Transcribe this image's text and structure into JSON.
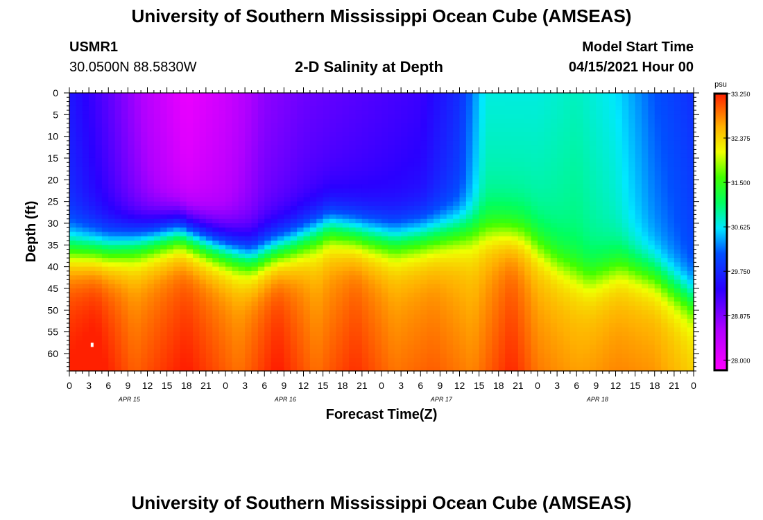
{
  "page": {
    "title_top": "University of Southern Mississippi Ocean Cube (AMSEAS)",
    "title_bottom": "University of Southern Mississippi Ocean Cube (AMSEAS)",
    "station_id": "USMR1",
    "location": "30.0500N  88.5830W",
    "model_start_label": "Model Start Time",
    "model_start_value": "04/15/2021 Hour 00"
  },
  "chart_data": {
    "type": "heatmap",
    "title": "2-D Salinity at Depth",
    "xlabel": "Forecast Time(Z)",
    "ylabel": "Depth (ft)",
    "x_range_hours": [
      0,
      96
    ],
    "y_range_ft": [
      0,
      64
    ],
    "y_inverted": true,
    "x_tick_labels": [
      "0",
      "3",
      "6",
      "9",
      "12",
      "15",
      "18",
      "21",
      "0",
      "3",
      "6",
      "9",
      "12",
      "15",
      "18",
      "21",
      "0",
      "3",
      "6",
      "9",
      "12",
      "15",
      "18",
      "21",
      "0",
      "3",
      "6",
      "9",
      "12",
      "15",
      "18",
      "21",
      "0"
    ],
    "date_labels": [
      {
        "label": "APR 15",
        "hour": 9
      },
      {
        "label": "APR 16",
        "hour": 33
      },
      {
        "label": "APR 17",
        "hour": 57
      },
      {
        "label": "APR 18",
        "hour": 81
      }
    ],
    "y_ticks": [
      0,
      5,
      10,
      15,
      20,
      25,
      30,
      35,
      40,
      45,
      50,
      55,
      60
    ],
    "colorbar": {
      "unit": "psu",
      "range": [
        27.8,
        33.25
      ],
      "tick_labels": [
        "33.250",
        "32.375",
        "31.500",
        "30.625",
        "29.750",
        "28.875",
        "28.000"
      ],
      "tick_values": [
        33.25,
        32.375,
        31.5,
        30.625,
        29.75,
        28.875,
        28.0
      ],
      "stops": [
        {
          "value": 27.8,
          "color": "#ff00ff"
        },
        {
          "value": 28.6,
          "color": "#b000ff"
        },
        {
          "value": 29.4,
          "color": "#2a00ff"
        },
        {
          "value": 30.1,
          "color": "#0050ff"
        },
        {
          "value": 30.6,
          "color": "#00e8ff"
        },
        {
          "value": 31.1,
          "color": "#00ff60"
        },
        {
          "value": 31.6,
          "color": "#40ff00"
        },
        {
          "value": 32.1,
          "color": "#f0ff00"
        },
        {
          "value": 32.6,
          "color": "#ffb000"
        },
        {
          "value": 33.25,
          "color": "#ff2000"
        }
      ]
    },
    "field_model": {
      "description": "Two-layer salinity: low-salinity surface layer over saline bottom layer; halocline depth varies with forecast hour",
      "surface_salinity": {
        "hours": [
          0,
          6,
          12,
          18,
          24,
          30,
          36,
          42,
          48,
          54,
          60,
          64,
          68,
          72,
          78,
          84,
          90,
          96
        ],
        "psu": [
          29.6,
          29.1,
          28.5,
          28.0,
          28.3,
          28.8,
          29.0,
          29.1,
          29.2,
          29.3,
          29.8,
          30.7,
          30.7,
          30.7,
          30.8,
          30.6,
          30.1,
          29.8
        ]
      },
      "bottom_salinity": {
        "hours": [
          0,
          4,
          10,
          18,
          26,
          32,
          38,
          44,
          50,
          56,
          62,
          68,
          72,
          78,
          84,
          90,
          96
        ],
        "psu": [
          33.05,
          33.15,
          32.7,
          33.0,
          32.65,
          33.05,
          32.6,
          32.9,
          32.6,
          32.7,
          32.5,
          32.95,
          32.6,
          32.5,
          32.6,
          32.55,
          32.3
        ]
      },
      "halocline_depth_ft": {
        "hours": [
          0,
          6,
          12,
          17,
          22,
          28,
          34,
          40,
          46,
          50,
          56,
          60,
          66,
          70,
          75,
          80,
          85,
          90,
          96
        ],
        "ft": [
          36,
          36,
          34,
          32,
          35,
          38,
          35,
          31,
          33,
          34,
          33,
          32,
          32,
          33,
          39,
          43,
          40,
          42,
          48
        ]
      },
      "halocline_thickness_ft": 14
    },
    "marker": {
      "hour": 3.5,
      "depth_ft": 58,
      "color": "#ffffff"
    }
  }
}
